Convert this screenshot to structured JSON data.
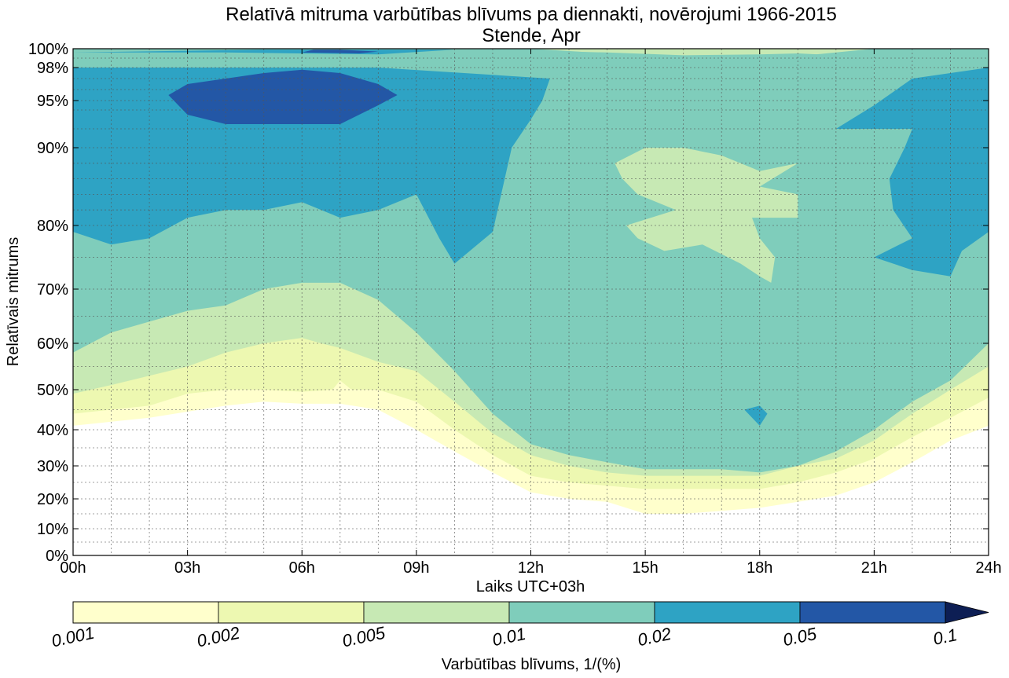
{
  "chart_data": {
    "type": "heatmap",
    "title": "Relatīvā mitruma varbūtības blīvums pa diennakti, novērojumi 1966-2015",
    "subtitle": "Stende, Apr",
    "xlabel": "Laiks UTC+03h",
    "ylabel": "Relatīvais mitrums",
    "x_ticks": [
      "00h",
      "03h",
      "06h",
      "09h",
      "12h",
      "15h",
      "18h",
      "21h",
      "24h"
    ],
    "y_ticks": [
      "0%",
      "10%",
      "20%",
      "30%",
      "40%",
      "50%",
      "60%",
      "70%",
      "80%",
      "90%",
      "95%",
      "98%",
      "100%"
    ],
    "xlim": [
      0,
      24
    ],
    "ylim": [
      0,
      100
    ],
    "grid": true,
    "colorbar": {
      "label": "Varbūtības blīvums, 1/(%)",
      "levels": [
        "0.001",
        "0.002",
        "0.005",
        "0.01",
        "0.02",
        "0.05",
        "0.1"
      ],
      "colors": [
        "#ffffcc",
        "#edf8b1",
        "#c7e9b4",
        "#7fcdbb",
        "#2ea3c4",
        "#2357a6",
        "#0d1e54"
      ],
      "extend": "max"
    },
    "contour_regions": [
      {
        "level": "0.001-0.002",
        "color": "#ffffcc",
        "points": [
          [
            0,
            41
          ],
          [
            1,
            42
          ],
          [
            2,
            43
          ],
          [
            3,
            44.5
          ],
          [
            4,
            46
          ],
          [
            5,
            47
          ],
          [
            6,
            46.5
          ],
          [
            7,
            46.5
          ],
          [
            8,
            45
          ],
          [
            9,
            40
          ],
          [
            10,
            34
          ],
          [
            11,
            28
          ],
          [
            12,
            22
          ],
          [
            13,
            20
          ],
          [
            14,
            19
          ],
          [
            15,
            15
          ],
          [
            16,
            15
          ],
          [
            17,
            16
          ],
          [
            18,
            17
          ],
          [
            19,
            19
          ],
          [
            20,
            21
          ],
          [
            21,
            25
          ],
          [
            22,
            31
          ],
          [
            23,
            37
          ],
          [
            24,
            41
          ],
          [
            24,
            100
          ],
          [
            0,
            100
          ]
        ]
      },
      {
        "level": "0.002-0.005",
        "color": "#edf8b1",
        "points": [
          [
            0,
            44
          ],
          [
            1,
            45
          ],
          [
            2,
            46
          ],
          [
            3,
            49
          ],
          [
            4,
            50
          ],
          [
            5,
            50
          ],
          [
            6,
            49.5
          ],
          [
            6.8,
            50
          ],
          [
            7,
            52
          ],
          [
            7.3,
            50
          ],
          [
            8,
            50
          ],
          [
            9,
            47
          ],
          [
            10,
            40
          ],
          [
            11,
            33
          ],
          [
            12,
            27
          ],
          [
            13,
            25
          ],
          [
            14,
            24
          ],
          [
            15,
            23
          ],
          [
            16,
            23
          ],
          [
            17,
            23
          ],
          [
            18,
            23
          ],
          [
            19,
            25
          ],
          [
            20,
            28
          ],
          [
            21,
            32
          ],
          [
            22,
            38
          ],
          [
            23,
            43
          ],
          [
            24,
            48
          ],
          [
            24,
            100
          ],
          [
            0,
            100
          ]
        ]
      },
      {
        "level": "0.005-0.01",
        "color": "#c7e9b4",
        "points": [
          [
            0,
            49
          ],
          [
            1,
            51
          ],
          [
            2,
            53
          ],
          [
            3,
            55
          ],
          [
            4,
            58
          ],
          [
            5,
            60
          ],
          [
            6,
            61
          ],
          [
            6.5,
            60
          ],
          [
            7,
            59
          ],
          [
            8,
            56
          ],
          [
            9,
            54
          ],
          [
            10,
            47
          ],
          [
            11,
            39
          ],
          [
            12,
            33
          ],
          [
            13,
            30
          ],
          [
            14,
            28
          ],
          [
            15,
            27
          ],
          [
            16,
            27
          ],
          [
            17,
            27
          ],
          [
            18,
            27
          ],
          [
            19,
            30
          ],
          [
            20,
            32
          ],
          [
            21,
            37
          ],
          [
            22,
            44
          ],
          [
            23,
            50
          ],
          [
            24,
            55
          ],
          [
            24,
            100
          ],
          [
            0,
            100
          ]
        ]
      },
      {
        "level": "0.01-0.02",
        "color": "#7fcdbb",
        "points": [
          [
            0,
            58
          ],
          [
            1,
            62
          ],
          [
            2,
            64
          ],
          [
            3,
            66
          ],
          [
            4,
            67
          ],
          [
            5,
            70
          ],
          [
            6,
            71
          ],
          [
            7,
            71
          ],
          [
            8,
            68
          ],
          [
            9,
            62
          ],
          [
            10,
            54
          ],
          [
            11,
            44
          ],
          [
            12,
            36
          ],
          [
            13,
            33
          ],
          [
            14,
            31
          ],
          [
            15,
            29
          ],
          [
            16,
            29
          ],
          [
            17,
            29
          ],
          [
            18,
            28
          ],
          [
            19,
            30
          ],
          [
            20,
            34
          ],
          [
            21,
            40
          ],
          [
            22,
            47
          ],
          [
            23,
            52
          ],
          [
            24,
            60
          ],
          [
            24,
            100
          ],
          [
            0,
            100
          ]
        ]
      },
      {
        "level": "0.005-0.01",
        "color": "#c7e9b4",
        "points": [
          [
            12,
            100
          ],
          [
            14,
            99.5
          ],
          [
            16,
            99
          ],
          [
            18,
            98.8
          ],
          [
            19,
            99.2
          ],
          [
            20,
            99.6
          ],
          [
            21,
            100
          ]
        ]
      },
      {
        "level": "0.01-0.02",
        "color": "#7fcdbb",
        "points": [
          [
            0,
            79
          ],
          [
            1,
            77
          ],
          [
            2,
            78
          ],
          [
            3,
            81
          ],
          [
            4,
            82
          ],
          [
            5,
            82
          ],
          [
            6,
            83
          ],
          [
            7,
            81
          ],
          [
            8,
            82
          ],
          [
            9,
            84
          ],
          [
            9.6,
            78
          ],
          [
            10,
            74
          ],
          [
            11,
            79
          ],
          [
            11.5,
            90
          ],
          [
            12,
            93
          ],
          [
            12.3,
            95
          ],
          [
            12.5,
            97
          ],
          [
            13,
            98
          ],
          [
            16,
            97
          ],
          [
            18,
            97
          ],
          [
            20,
            97
          ],
          [
            21.5,
            97.5
          ],
          [
            22,
            97
          ],
          [
            24,
            98
          ],
          [
            24,
            99.3
          ],
          [
            23,
            99.5
          ],
          [
            22,
            99.4
          ],
          [
            21,
            99.7
          ],
          [
            20,
            99.3
          ],
          [
            19,
            99.5
          ],
          [
            18,
            99.4
          ],
          [
            16,
            99.3
          ],
          [
            14,
            99.6
          ],
          [
            12,
            99.8
          ],
          [
            10,
            99.9
          ],
          [
            6,
            99.9
          ],
          [
            0,
            99.5
          ]
        ]
      },
      {
        "level": "0.02-0.05",
        "color": "#2ea3c4",
        "points": [
          [
            0,
            79
          ],
          [
            1,
            77
          ],
          [
            2,
            78
          ],
          [
            3,
            81
          ],
          [
            4,
            82
          ],
          [
            5,
            82
          ],
          [
            6,
            83
          ],
          [
            7,
            81
          ],
          [
            8,
            82
          ],
          [
            9,
            84
          ],
          [
            9.6,
            78
          ],
          [
            10,
            74
          ],
          [
            11,
            79
          ],
          [
            11.5,
            90
          ],
          [
            12,
            93
          ],
          [
            12.3,
            95
          ],
          [
            12.5,
            97
          ],
          [
            8,
            98
          ],
          [
            0,
            98
          ]
        ]
      },
      {
        "level": "0.02-0.05",
        "color": "#2ea3c4",
        "points": [
          [
            0,
            99.6
          ],
          [
            5,
            99.9
          ],
          [
            10,
            99.9
          ],
          [
            8,
            99.4
          ],
          [
            4,
            99.6
          ]
        ]
      },
      {
        "level": "0.02-0.05",
        "color": "#2ea3c4",
        "points": [
          [
            20,
            92
          ],
          [
            21,
            94.5
          ],
          [
            22,
            97
          ],
          [
            24,
            98
          ],
          [
            24,
            79
          ],
          [
            23.3,
            76
          ],
          [
            23,
            72
          ],
          [
            22,
            73
          ],
          [
            21,
            75
          ],
          [
            22,
            78
          ],
          [
            21.5,
            82
          ],
          [
            21.4,
            86
          ],
          [
            21.8,
            90
          ],
          [
            22,
            92
          ]
        ]
      },
      {
        "level": "0.02-0.05",
        "color": "#2ea3c4",
        "points": [
          [
            17.6,
            45
          ],
          [
            18,
            41
          ],
          [
            18.2,
            44
          ],
          [
            18,
            46
          ]
        ]
      },
      {
        "level": "0.005-0.01",
        "color": "#c7e9b4",
        "points": [
          [
            14.2,
            88
          ],
          [
            15,
            90
          ],
          [
            16,
            90
          ],
          [
            17,
            89
          ],
          [
            18,
            87
          ],
          [
            19,
            88
          ],
          [
            18,
            85
          ],
          [
            19,
            84
          ],
          [
            19,
            81
          ],
          [
            17.8,
            81
          ],
          [
            18,
            78
          ],
          [
            18.4,
            75
          ],
          [
            18.3,
            71
          ],
          [
            18,
            72
          ],
          [
            17.5,
            74
          ],
          [
            16.5,
            77
          ],
          [
            15.5,
            76
          ],
          [
            14.8,
            78
          ],
          [
            14.5,
            80
          ],
          [
            15.8,
            82
          ],
          [
            14.8,
            84
          ],
          [
            14.4,
            86
          ]
        ]
      },
      {
        "level": "0.05-0.1",
        "color": "#2357a6",
        "points": [
          [
            2.5,
            95.5
          ],
          [
            3,
            96.5
          ],
          [
            4,
            97
          ],
          [
            5,
            97.5
          ],
          [
            6,
            97.8
          ],
          [
            7,
            97.5
          ],
          [
            8,
            96.5
          ],
          [
            8.5,
            95.5
          ],
          [
            8,
            94.5
          ],
          [
            7,
            92.5
          ],
          [
            6,
            92.5
          ],
          [
            5,
            92.5
          ],
          [
            4,
            92.5
          ],
          [
            3,
            93.5
          ]
        ]
      },
      {
        "level": "0.05-0.1",
        "color": "#2357a6",
        "points": [
          [
            6,
            99.6
          ],
          [
            7.5,
            99.5
          ],
          [
            8,
            99.7
          ],
          [
            7,
            99.9
          ],
          [
            6.3,
            99.9
          ]
        ]
      }
    ]
  }
}
